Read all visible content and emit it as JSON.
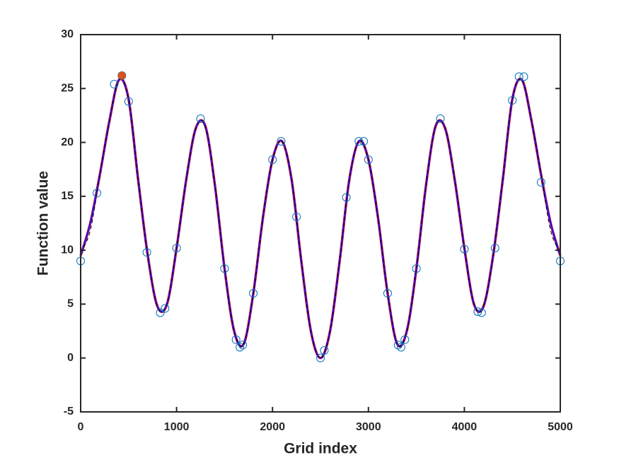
{
  "chart_data": {
    "type": "line",
    "xlabel": "Grid index",
    "ylabel": "Function value",
    "xlim": [
      0,
      5000
    ],
    "ylim": [
      -5,
      30
    ],
    "xticks": [
      0,
      1000,
      2000,
      3000,
      4000,
      5000
    ],
    "yticks": [
      -5,
      0,
      5,
      10,
      15,
      20,
      25,
      30
    ],
    "x": [
      0,
      100,
      200,
      300,
      400,
      500,
      600,
      700,
      800,
      900,
      1000,
      1100,
      1200,
      1300,
      1400,
      1500,
      1600,
      1700,
      1800,
      1900,
      2000,
      2100,
      2200,
      2300,
      2400,
      2500,
      2600,
      2700,
      2800,
      2900,
      3000,
      3100,
      3200,
      3300,
      3400,
      3500,
      3600,
      3700,
      3800,
      3900,
      4000,
      4100,
      4200,
      4300,
      4400,
      4500,
      4600,
      4700,
      4800,
      4900,
      5000
    ],
    "series": [
      {
        "color": "#ff0000",
        "width": 3.5,
        "dashed": false,
        "values": [
          9.5,
          12.5,
          17,
          22,
          25.8,
          24,
          16.5,
          9.5,
          4.8,
          5,
          10.2,
          16.5,
          21.3,
          21.5,
          16,
          8.3,
          2.5,
          1.3,
          6,
          13,
          18.4,
          20.1,
          16.5,
          9,
          2.5,
          0,
          2.5,
          9,
          16.5,
          20.1,
          18.4,
          13,
          6,
          1.3,
          2.5,
          8.3,
          16,
          21.5,
          21.3,
          16.5,
          10.2,
          5,
          4.8,
          9.5,
          16.5,
          24,
          25.8,
          22,
          17,
          12.5,
          9.5
        ]
      },
      {
        "color": "#1a1aff",
        "width": 2.2,
        "dashed": false,
        "values": [
          9.5,
          12.5,
          17,
          22,
          25.8,
          24,
          16.5,
          9.5,
          4.8,
          5,
          10.2,
          16.5,
          21.3,
          21.5,
          16,
          8.3,
          2.5,
          1.3,
          6,
          13,
          18.4,
          20.1,
          16.5,
          9,
          2.5,
          0,
          2.5,
          9,
          16.5,
          20.1,
          18.4,
          13,
          6,
          1.3,
          2.5,
          8.3,
          16,
          21.5,
          21.3,
          16.5,
          10.2,
          5,
          4.8,
          9.5,
          16.5,
          24,
          25.8,
          22,
          17,
          12.5,
          9.5
        ]
      },
      {
        "color": "#000000",
        "width": 1,
        "dashed": true,
        "values": [
          9.8,
          11.8,
          17,
          22,
          25.8,
          24,
          16.5,
          9.5,
          4.8,
          5,
          10.2,
          16.5,
          21.3,
          21.5,
          16,
          8.3,
          2.5,
          1.3,
          6,
          13,
          18.4,
          20.1,
          16.5,
          9,
          2.5,
          0,
          2.5,
          9,
          16.5,
          20.1,
          18.4,
          13,
          6,
          1.3,
          2.5,
          8.3,
          16,
          21.5,
          21.3,
          16.5,
          10.2,
          5,
          4.8,
          9.5,
          16.5,
          24,
          25.8,
          22,
          17,
          11.8,
          9.8
        ]
      }
    ],
    "samples": {
      "color": "#0072bd",
      "x": [
        0,
        170,
        350,
        430,
        500,
        690,
        830,
        880,
        1000,
        1250,
        1500,
        1620,
        1660,
        1690,
        1800,
        2000,
        2090,
        2250,
        2500,
        2540,
        2770,
        2900,
        2950,
        3000,
        3200,
        3310,
        3340,
        3380,
        3500,
        3750,
        4000,
        4140,
        4180,
        4320,
        4500,
        4570,
        4620,
        4800,
        5000
      ],
      "y": [
        9,
        15.3,
        25.4,
        26.2,
        23.8,
        9.8,
        4.2,
        4.6,
        10.2,
        22.2,
        8.3,
        1.7,
        1,
        1.2,
        6,
        18.4,
        20.1,
        13.1,
        0,
        0.7,
        14.9,
        20.1,
        20.1,
        18.4,
        6,
        1.2,
        1,
        1.7,
        8.3,
        22.2,
        10.1,
        4.3,
        4.2,
        10.2,
        23.9,
        26.1,
        26.1,
        16.3,
        9
      ]
    },
    "best": {
      "color": "#d95319",
      "x": 430,
      "y": 26.2
    }
  }
}
